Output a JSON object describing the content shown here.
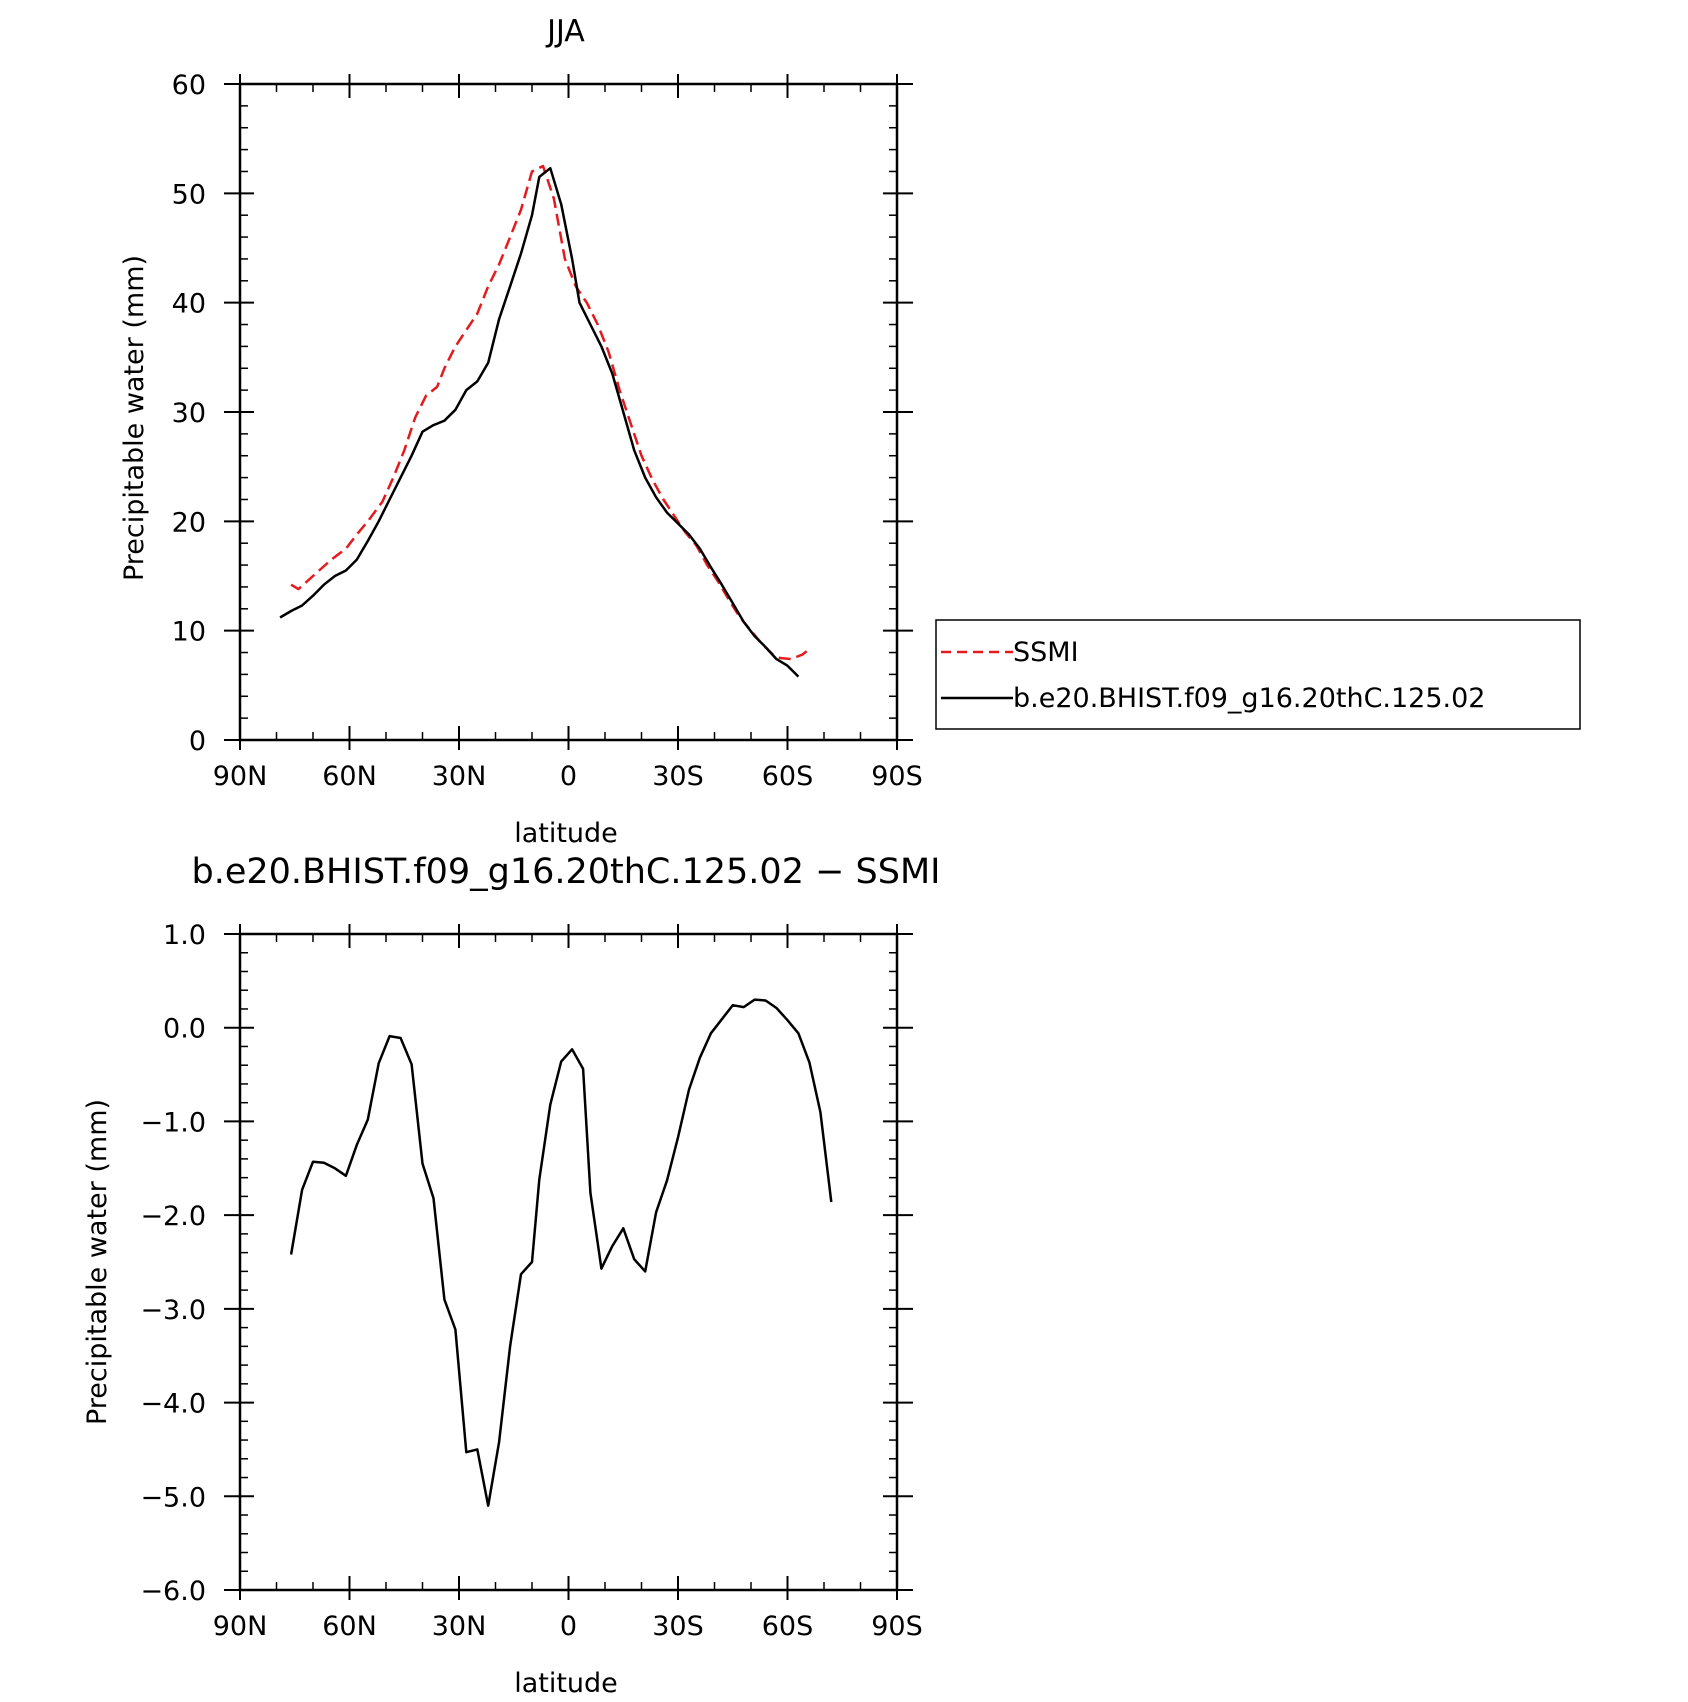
{
  "chart_data": [
    {
      "type": "line",
      "title": "JJA",
      "xlabel": "latitude",
      "ylabel": "Precipitable water (mm)",
      "xlim": [
        90,
        -90
      ],
      "ylim": [
        0,
        60
      ],
      "x_ticks": [
        {
          "value": 90,
          "label": "90N"
        },
        {
          "value": 60,
          "label": "60N"
        },
        {
          "value": 30,
          "label": "30N"
        },
        {
          "value": 0,
          "label": "0"
        },
        {
          "value": -30,
          "label": "30S"
        },
        {
          "value": -60,
          "label": "60S"
        },
        {
          "value": -90,
          "label": "90S"
        }
      ],
      "y_ticks": [
        {
          "value": 0,
          "label": "0"
        },
        {
          "value": 10,
          "label": "10"
        },
        {
          "value": 20,
          "label": "20"
        },
        {
          "value": 30,
          "label": "30"
        },
        {
          "value": 40,
          "label": "40"
        },
        {
          "value": 50,
          "label": "50"
        },
        {
          "value": 60,
          "label": "60"
        }
      ],
      "grid": false,
      "legend": "right",
      "series": [
        {
          "name": "SSMI",
          "color": "#e41a1c",
          "dash": "dashed",
          "points": [
            [
              76,
              14.2
            ],
            [
              74,
              13.8
            ],
            [
              70,
              15.0
            ],
            [
              65,
              16.5
            ],
            [
              61,
              17.5
            ],
            [
              58,
              18.8
            ],
            [
              55,
              20.0
            ],
            [
              51,
              21.8
            ],
            [
              48,
              24.0
            ],
            [
              45,
              26.5
            ],
            [
              42,
              29.5
            ],
            [
              39,
              31.5
            ],
            [
              36,
              32.3
            ],
            [
              34,
              34.0
            ],
            [
              31,
              36.0
            ],
            [
              28,
              37.5
            ],
            [
              25,
              39.0
            ],
            [
              22,
              41.5
            ],
            [
              19,
              43.5
            ],
            [
              16,
              46.0
            ],
            [
              13,
              48.5
            ],
            [
              10,
              52.0
            ],
            [
              7,
              52.5
            ],
            [
              4,
              49.5
            ],
            [
              1,
              44.0
            ],
            [
              -2,
              41.5
            ],
            [
              -5,
              40.0
            ],
            [
              -8,
              38.0
            ],
            [
              -11,
              35.5
            ],
            [
              -14,
              32.0
            ],
            [
              -17,
              29.0
            ],
            [
              -20,
              26.0
            ],
            [
              -23,
              23.8
            ],
            [
              -26,
              22.0
            ],
            [
              -29,
              20.5
            ],
            [
              -32,
              19.0
            ],
            [
              -35,
              17.8
            ],
            [
              -38,
              16.0
            ],
            [
              -41,
              14.5
            ],
            [
              -44,
              12.8
            ],
            [
              -47,
              11.2
            ],
            [
              -50,
              10.0
            ],
            [
              -53,
              8.8
            ],
            [
              -56,
              7.8
            ],
            [
              -58,
              7.5
            ],
            [
              -61,
              7.4
            ],
            [
              -64,
              7.8
            ],
            [
              -66,
              8.3
            ]
          ]
        },
        {
          "name": "b.e20.BHIST.f09_g16.20thC.125.02",
          "color": "#000000",
          "dash": "solid",
          "points": [
            [
              79,
              11.2
            ],
            [
              76,
              11.8
            ],
            [
              73,
              12.3
            ],
            [
              70,
              13.2
            ],
            [
              67,
              14.2
            ],
            [
              64,
              15.0
            ],
            [
              61,
              15.5
            ],
            [
              58,
              16.5
            ],
            [
              55,
              18.2
            ],
            [
              52,
              20.0
            ],
            [
              49,
              22.0
            ],
            [
              46,
              24.0
            ],
            [
              43,
              26.0
            ],
            [
              40,
              28.2
            ],
            [
              37,
              28.8
            ],
            [
              34,
              29.2
            ],
            [
              31,
              30.2
            ],
            [
              28,
              32.0
            ],
            [
              25,
              32.8
            ],
            [
              22,
              34.5
            ],
            [
              19,
              38.5
            ],
            [
              16,
              41.5
            ],
            [
              13,
              44.5
            ],
            [
              10,
              48.0
            ],
            [
              8,
              51.5
            ],
            [
              5,
              52.3
            ],
            [
              2,
              49.0
            ],
            [
              -1,
              44.0
            ],
            [
              -3,
              40.0
            ],
            [
              -6,
              38.0
            ],
            [
              -9,
              36.0
            ],
            [
              -12,
              33.5
            ],
            [
              -15,
              30.0
            ],
            [
              -18,
              26.5
            ],
            [
              -21,
              24.0
            ],
            [
              -24,
              22.2
            ],
            [
              -27,
              20.8
            ],
            [
              -30,
              19.8
            ],
            [
              -33,
              18.8
            ],
            [
              -36,
              17.5
            ],
            [
              -39,
              15.8
            ],
            [
              -42,
              14.2
            ],
            [
              -45,
              12.5
            ],
            [
              -48,
              10.8
            ],
            [
              -51,
              9.5
            ],
            [
              -54,
              8.5
            ],
            [
              -57,
              7.4
            ],
            [
              -60,
              6.8
            ],
            [
              -63,
              5.8
            ]
          ]
        }
      ]
    },
    {
      "type": "line",
      "title": "b.e20.BHIST.f09_g16.20thC.125.02 − SSMI",
      "xlabel": "latitude",
      "ylabel": "Precipitable water (mm)",
      "xlim": [
        90,
        -90
      ],
      "ylim": [
        -6,
        1
      ],
      "x_ticks": [
        {
          "value": 90,
          "label": "90N"
        },
        {
          "value": 60,
          "label": "60N"
        },
        {
          "value": 30,
          "label": "30N"
        },
        {
          "value": 0,
          "label": "0"
        },
        {
          "value": -30,
          "label": "30S"
        },
        {
          "value": -60,
          "label": "60S"
        },
        {
          "value": -90,
          "label": "90S"
        }
      ],
      "y_ticks": [
        {
          "value": -6,
          "label": "−6.0"
        },
        {
          "value": -5,
          "label": "−5.0"
        },
        {
          "value": -4,
          "label": "−4.0"
        },
        {
          "value": -3,
          "label": "−3.0"
        },
        {
          "value": -2,
          "label": "−2.0"
        },
        {
          "value": -1,
          "label": "−1.0"
        },
        {
          "value": 0,
          "label": "0.0"
        },
        {
          "value": 1,
          "label": "1.0"
        }
      ],
      "grid": false,
      "series": [
        {
          "color": "#000000",
          "dash": "solid",
          "points": [
            [
              76,
              -2.42
            ],
            [
              73,
              -1.73
            ],
            [
              70,
              -1.43
            ],
            [
              67,
              -1.44
            ],
            [
              64,
              -1.5
            ],
            [
              61,
              -1.58
            ],
            [
              58,
              -1.25
            ],
            [
              55,
              -0.98
            ],
            [
              52,
              -0.38
            ],
            [
              49,
              -0.09
            ],
            [
              46,
              -0.11
            ],
            [
              43,
              -0.39
            ],
            [
              40,
              -1.45
            ],
            [
              37,
              -1.82
            ],
            [
              34,
              -2.9
            ],
            [
              31,
              -3.22
            ],
            [
              28,
              -4.53
            ],
            [
              25,
              -4.5
            ],
            [
              22,
              -5.1
            ],
            [
              19,
              -4.42
            ],
            [
              16,
              -3.4
            ],
            [
              13,
              -2.63
            ],
            [
              10,
              -2.5
            ],
            [
              8,
              -1.62
            ],
            [
              5,
              -0.82
            ],
            [
              2,
              -0.36
            ],
            [
              -1,
              -0.23
            ],
            [
              -4,
              -0.44
            ],
            [
              -6,
              -1.76
            ],
            [
              -9,
              -2.57
            ],
            [
              -12,
              -2.33
            ],
            [
              -15,
              -2.14
            ],
            [
              -18,
              -2.47
            ],
            [
              -21,
              -2.6
            ],
            [
              -24,
              -1.97
            ],
            [
              -27,
              -1.63
            ],
            [
              -30,
              -1.17
            ],
            [
              -33,
              -0.66
            ],
            [
              -36,
              -0.32
            ],
            [
              -39,
              -0.06
            ],
            [
              -42,
              0.09
            ],
            [
              -45,
              0.24
            ],
            [
              -48,
              0.22
            ],
            [
              -51,
              0.3
            ],
            [
              -54,
              0.29
            ],
            [
              -57,
              0.21
            ],
            [
              -60,
              0.08
            ],
            [
              -63,
              -0.06
            ],
            [
              -66,
              -0.37
            ],
            [
              -69,
              -0.9
            ],
            [
              -72,
              -1.86
            ]
          ]
        }
      ]
    }
  ]
}
